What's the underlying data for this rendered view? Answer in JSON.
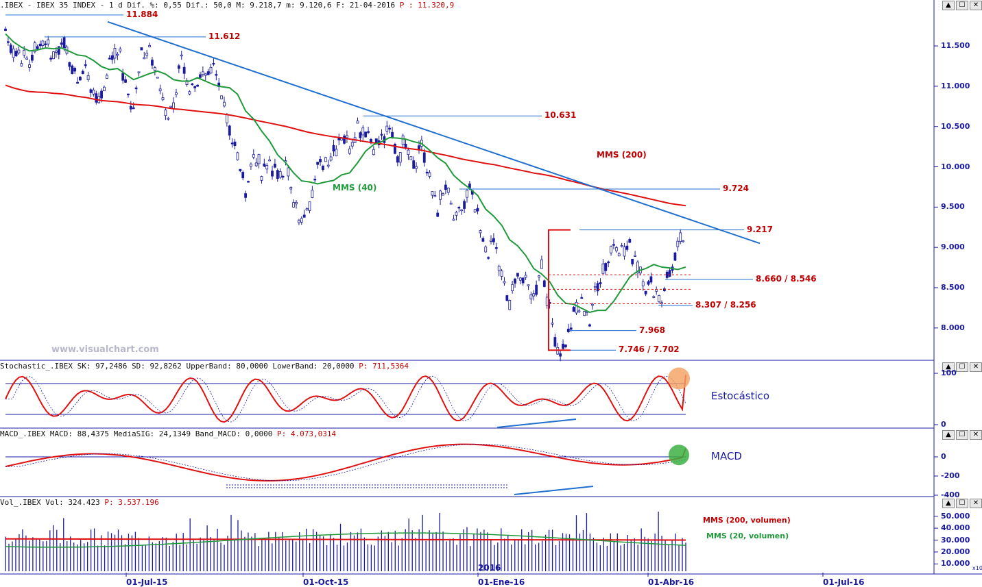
{
  "header": {
    "main": {
      "text": ".IBEX - IBEX 35 INDEX -  1 d Dif. %: 0,55 Dif.: 50,0 M: 9.218,7 m: 9.120,6 F: 21-04-2016 ",
      "p": "P : 11.320,9"
    },
    "stoch": {
      "text": "Stochastic_.IBEX SK: 97,2486 SD: 92,8262 UpperBand: 80,0000 LowerBand: 20,0000 ",
      "p": "P: 711,5364"
    },
    "macd": {
      "text": "MACD_.IBEX MACD: 88,4375 MediaSIG: 24,1349 Band_MACD: 0,0000 ",
      "p": "P: 4.073,0314"
    },
    "vol": {
      "text": "Vol_.IBEX Vol: 324.423 ",
      "p": "P: 3.537.196"
    }
  },
  "window_buttons": [
    "▲",
    "☐",
    "✕"
  ],
  "watermark": "www.visualchart.com",
  "colors": {
    "price_line": "#1a1aa0",
    "mms200": "#e01010",
    "mms40": "#1f9a3a",
    "trend": "#1e6fd0",
    "axis": "#1a1aa0"
  },
  "chart_data": {
    "type": "line",
    "x_labels": [
      "01-Jul-15",
      "01-Oct-15",
      "01-Ene-16",
      "01-Abr-16",
      "01-Jul-16"
    ],
    "year_label": "2016",
    "price_axis_ticks": [
      "11.500",
      "11.000",
      "10.500",
      "10.000",
      "9.500",
      "9.000",
      "8.500",
      "8.000"
    ],
    "price_levels": [
      {
        "label": "11.884",
        "value": 11884
      },
      {
        "label": "11.612",
        "value": 11612
      },
      {
        "label": "10.631",
        "value": 10631
      },
      {
        "label": "9.724",
        "value": 9724
      },
      {
        "label": "9.217",
        "value": 9217
      },
      {
        "label": "8.660 / 8.546",
        "value": 8603
      },
      {
        "label": "8.307 / 8.256",
        "value": 8280
      },
      {
        "label": "7.968",
        "value": 7968
      },
      {
        "label": "7.746 / 7.702",
        "value": 7724
      }
    ],
    "series_labels": {
      "mms200": "MMS (200)",
      "mms40": "MMS (40)"
    },
    "stoch_axis_ticks": [
      "100",
      "0"
    ],
    "stoch_label": "Estocástico",
    "macd_axis_ticks": [
      "0",
      "-200",
      "-400"
    ],
    "macd_label": "MACD",
    "vol_axis_ticks": [
      "50.000",
      "40.000",
      "30.000",
      "20.000",
      "10.000"
    ],
    "vol_multiplier": "x10",
    "vol_labels": {
      "mms200": "MMS (200, volumen)",
      "mms20": "MMS (20, volumen)"
    },
    "price_points": [
      11650,
      11450,
      11350,
      11300,
      11500,
      11600,
      11400,
      11550,
      11300,
      11100,
      11250,
      10850,
      10900,
      11300,
      11500,
      11000,
      10750,
      11400,
      11550,
      11100,
      10600,
      10750,
      11350,
      11000,
      11100,
      11050,
      11200,
      10900,
      10500,
      10100,
      9700,
      10200,
      9900,
      10050,
      9850,
      10100,
      9500,
      9300,
      9600,
      10000,
      10100,
      10200,
      10400,
      10300,
      10500,
      10450,
      10250,
      10300,
      10500,
      10150,
      10300,
      10050,
      10300,
      9800,
      9500,
      9750,
      9300,
      9450,
      9700,
      9350,
      8950,
      9100,
      8600,
      8300,
      8700,
      8500,
      8400,
      8800,
      8200,
      7750,
      7800,
      8200,
      8300,
      8100,
      8600,
      8800,
      9100,
      8950,
      9000,
      8800,
      8550,
      8500,
      8350,
      8700,
      8950,
      9200
    ]
  }
}
